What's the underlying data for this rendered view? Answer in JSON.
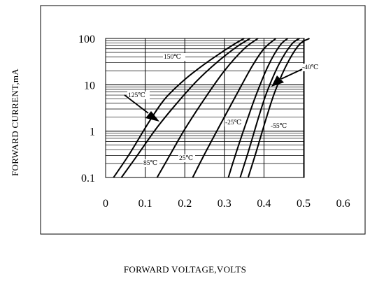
{
  "chart_data": {
    "type": "line",
    "title": "",
    "xlabel": "FORWARD VOLTAGE,VOLTS",
    "ylabel": "FORWARD CURRENT,mA",
    "xlim": [
      0,
      0.6
    ],
    "ylim": [
      0.1,
      100
    ],
    "y_scale": "log",
    "x_ticks": [
      "0",
      "0.1",
      "0.2",
      "0.3",
      "0.4",
      "0.5",
      "0.6"
    ],
    "y_ticks": [
      "0.1",
      "1",
      "10",
      "100"
    ],
    "grid": true,
    "series": [
      {
        "name": "150℃",
        "points": [
          [
            0.02,
            0.1
          ],
          [
            0.06,
            0.32
          ],
          [
            0.11,
            1.6
          ],
          [
            0.15,
            5
          ],
          [
            0.2,
            13
          ],
          [
            0.25,
            28
          ],
          [
            0.3,
            55
          ],
          [
            0.33,
            80
          ],
          [
            0.35,
            100
          ]
        ]
      },
      {
        "name": "125℃",
        "points": [
          [
            0.04,
            0.1
          ],
          [
            0.08,
            0.3
          ],
          [
            0.13,
            1.2
          ],
          [
            0.18,
            4
          ],
          [
            0.23,
            12
          ],
          [
            0.28,
            30
          ],
          [
            0.33,
            65
          ],
          [
            0.365,
            100
          ]
        ]
      },
      {
        "name": "85℃",
        "points": [
          [
            0.13,
            0.1
          ],
          [
            0.16,
            0.28
          ],
          [
            0.2,
            1.1
          ],
          [
            0.25,
            5
          ],
          [
            0.3,
            20
          ],
          [
            0.35,
            60
          ],
          [
            0.385,
            100
          ]
        ]
      },
      {
        "name": "25℃",
        "points": [
          [
            0.22,
            0.1
          ],
          [
            0.25,
            0.32
          ],
          [
            0.29,
            1.4
          ],
          [
            0.33,
            6
          ],
          [
            0.37,
            25
          ],
          [
            0.4,
            60
          ],
          [
            0.43,
            100
          ]
        ]
      },
      {
        "name": "-25℃",
        "points": [
          [
            0.31,
            0.1
          ],
          [
            0.33,
            0.35
          ],
          [
            0.36,
            2
          ],
          [
            0.38,
            6
          ],
          [
            0.41,
            25
          ],
          [
            0.44,
            70
          ],
          [
            0.46,
            100
          ]
        ]
      },
      {
        "name": "-40℃",
        "points": [
          [
            0.34,
            0.1
          ],
          [
            0.36,
            0.35
          ],
          [
            0.39,
            2.5
          ],
          [
            0.41,
            8
          ],
          [
            0.44,
            30
          ],
          [
            0.47,
            75
          ],
          [
            0.49,
            100
          ]
        ]
      },
      {
        "name": "-55℃",
        "points": [
          [
            0.36,
            0.1
          ],
          [
            0.38,
            0.35
          ],
          [
            0.41,
            2.5
          ],
          [
            0.43,
            8
          ],
          [
            0.46,
            30
          ],
          [
            0.49,
            75
          ],
          [
            0.515,
            100
          ]
        ]
      }
    ],
    "annotations": [
      "150℃",
      "125℃",
      "85℃",
      "25℃",
      "-25℃",
      "-55℃",
      "-40℃"
    ]
  }
}
